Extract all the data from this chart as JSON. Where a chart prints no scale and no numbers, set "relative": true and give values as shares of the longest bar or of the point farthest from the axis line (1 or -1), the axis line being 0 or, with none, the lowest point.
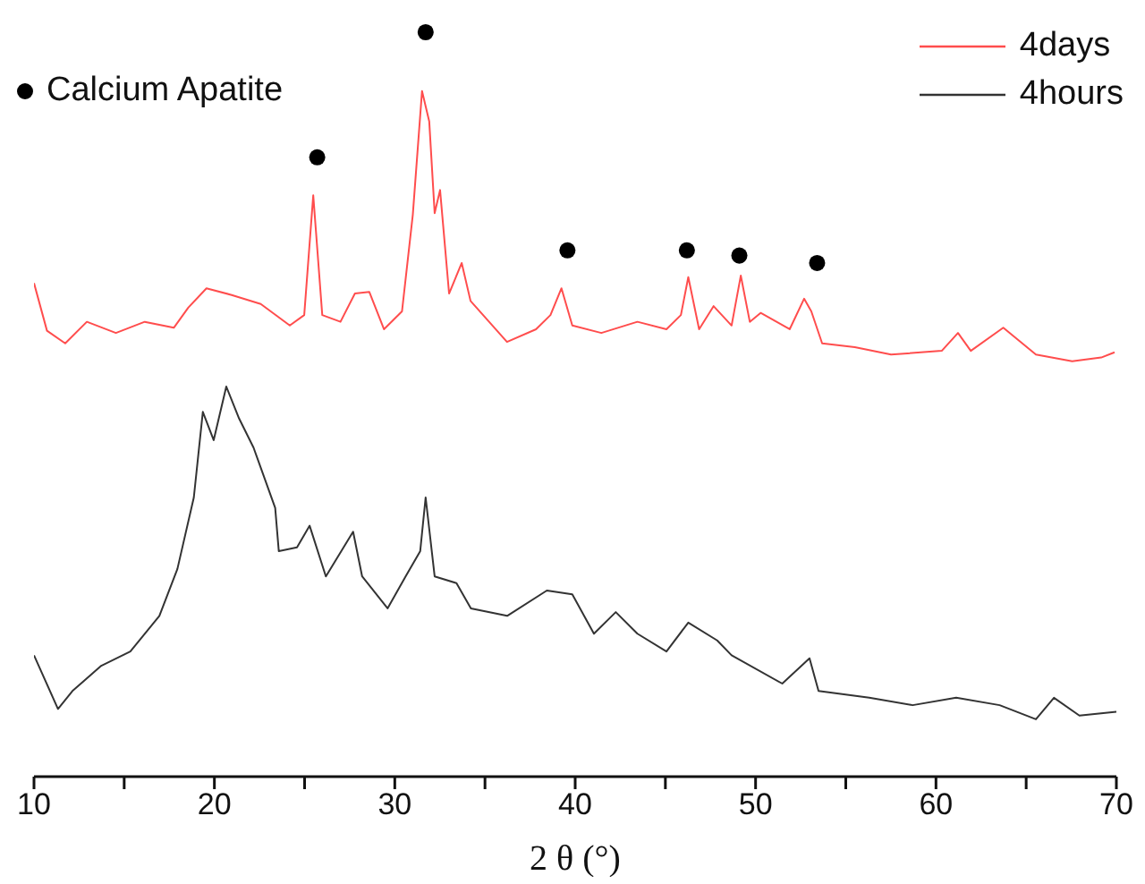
{
  "chart_data": {
    "type": "line",
    "relative": true,
    "xlabel": "2 θ (°)",
    "xlim": [
      10,
      70
    ],
    "xticks": [
      10,
      {
        "value": 15,
        "label": null
      },
      20,
      {
        "value": 25,
        "label": null
      },
      30,
      {
        "value": 35,
        "label": null
      },
      40,
      {
        "value": 45,
        "label": null
      },
      50,
      {
        "value": 55,
        "label": null
      },
      60,
      {
        "value": 65,
        "label": null
      },
      70
    ],
    "legend": "top",
    "grid": false,
    "marker": "none",
    "line_style": "solid",
    "series": [
      {
        "name": "4days",
        "color": "#ff4d4d",
        "x": [
          10.0,
          10.72,
          11.73,
          12.93,
          14.54,
          16.14,
          17.75,
          18.55,
          19.56,
          20.96,
          22.57,
          24.18,
          24.98,
          25.48,
          25.98,
          26.99,
          27.79,
          28.59,
          29.4,
          30.4,
          31.0,
          31.51,
          31.91,
          32.21,
          32.51,
          33.01,
          33.71,
          34.2,
          36.22,
          37.83,
          38.63,
          39.24,
          39.84,
          41.45,
          43.45,
          45.06,
          45.86,
          46.27,
          46.87,
          47.67,
          48.67,
          49.18,
          49.68,
          50.28,
          51.89,
          52.69,
          53.09,
          53.69,
          55.5,
          57.51,
          60.32,
          61.22,
          61.93,
          63.73,
          65.54,
          67.55,
          69.16,
          69.9
        ],
        "values": [
          0.663,
          0.599,
          0.582,
          0.611,
          0.596,
          0.611,
          0.603,
          0.63,
          0.656,
          0.647,
          0.635,
          0.606,
          0.62,
          0.781,
          0.62,
          0.611,
          0.649,
          0.651,
          0.601,
          0.625,
          0.755,
          0.921,
          0.88,
          0.757,
          0.788,
          0.649,
          0.69,
          0.639,
          0.584,
          0.601,
          0.62,
          0.656,
          0.606,
          0.596,
          0.611,
          0.601,
          0.62,
          0.671,
          0.601,
          0.632,
          0.606,
          0.673,
          0.611,
          0.623,
          0.601,
          0.642,
          0.625,
          0.582,
          0.577,
          0.567,
          0.572,
          0.596,
          0.572,
          0.603,
          0.567,
          0.558,
          0.563,
          0.57
        ]
      },
      {
        "name": "4hours",
        "color": "#333333",
        "x": [
          10.0,
          11.33,
          12.13,
          13.73,
          15.34,
          16.95,
          17.95,
          18.86,
          19.36,
          19.96,
          20.66,
          21.37,
          22.17,
          23.37,
          23.57,
          24.58,
          25.28,
          26.18,
          27.69,
          28.19,
          29.6,
          30.6,
          31.41,
          31.71,
          32.21,
          33.42,
          34.22,
          36.23,
          38.43,
          39.84,
          41.04,
          42.25,
          43.45,
          45.06,
          46.27,
          47.87,
          48.67,
          51.48,
          52.99,
          53.49,
          56.3,
          58.71,
          61.12,
          63.53,
          65.54,
          66.54,
          67.95,
          70.0
        ],
        "values": [
          0.163,
          0.091,
          0.115,
          0.149,
          0.168,
          0.216,
          0.279,
          0.375,
          0.49,
          0.452,
          0.524,
          0.481,
          0.442,
          0.361,
          0.303,
          0.308,
          0.337,
          0.269,
          0.329,
          0.269,
          0.226,
          0.269,
          0.303,
          0.375,
          0.269,
          0.26,
          0.226,
          0.216,
          0.25,
          0.245,
          0.192,
          0.221,
          0.192,
          0.168,
          0.207,
          0.183,
          0.163,
          0.125,
          0.159,
          0.115,
          0.106,
          0.096,
          0.106,
          0.096,
          0.077,
          0.106,
          0.082,
          0.087
        ]
      },
      {
        "name": "Calcium Apatite",
        "type": "scatter",
        "marker": "circle",
        "color": "#000000",
        "x": [
          25.7,
          31.71,
          39.57,
          46.19,
          49.1,
          53.41
        ],
        "values": [
          0.832,
          1.0,
          0.707,
          0.707,
          0.7,
          0.69
        ]
      }
    ]
  }
}
